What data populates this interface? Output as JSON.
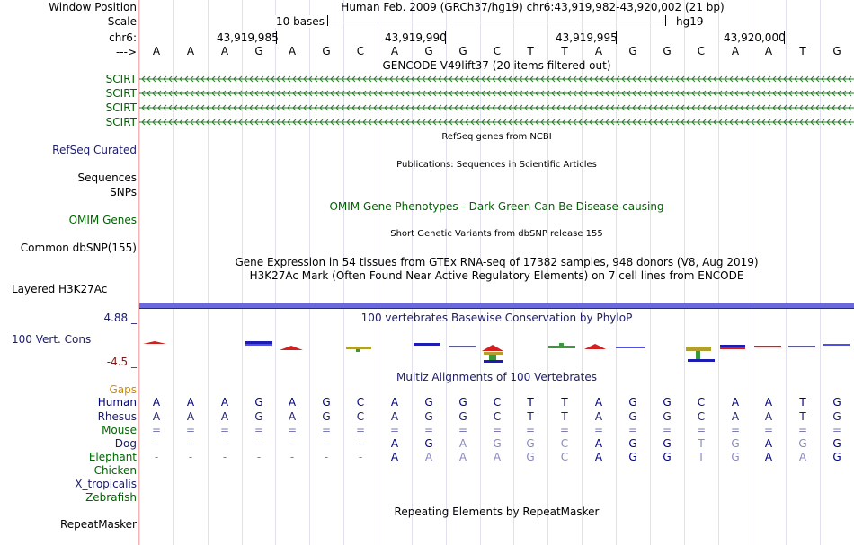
{
  "header": {
    "window_position_label": "Window Position",
    "window_position_value": "Human Feb. 2009 (GRCh37/hg19)   chr6:43,919,982-43,920,002 (21 bp)",
    "scale_label": "Scale",
    "scale_value": "10 bases",
    "scale_assembly": "hg19",
    "chrom_label": "chr6:",
    "strand_label": "--->",
    "positions": [
      "43,919,985",
      "43,919,990",
      "43,919,995",
      "43,920,000"
    ]
  },
  "sequence": [
    "A",
    "A",
    "A",
    "G",
    "A",
    "G",
    "C",
    "A",
    "G",
    "G",
    "C",
    "T",
    "T",
    "A",
    "G",
    "G",
    "C",
    "A",
    "A",
    "T",
    "G"
  ],
  "tracks": {
    "gencode_title": "GENCODE V49lift37 (20 items filtered out)",
    "gencode_items": [
      "SCIRT",
      "SCIRT",
      "SCIRT",
      "SCIRT"
    ],
    "refseq_title": "RefSeq genes from NCBI",
    "refseq_label": "RefSeq Curated",
    "publications_title": "Publications: Sequences in Scientific Articles",
    "sequences_label": "Sequences",
    "snps_label": "SNPs",
    "omim_title": "OMIM Gene Phenotypes - Dark Green Can Be Disease-causing",
    "omim_label": "OMIM Genes",
    "dbsnp_title": "Short Genetic Variants from dbSNP release 155",
    "dbsnp_label": "Common dbSNP(155)",
    "gtex_title": "Gene Expression in 54 tissues from GTEx RNA-seq of 17382 samples, 948 donors (V8, Aug 2019)",
    "h3k27_title": "H3K27Ac Mark (Often Found Near Active Regulatory Elements) on 7 cell lines from ENCODE",
    "h3k27_label": "Layered H3K27Ac",
    "phylop_title": "100 vertebrates Basewise Conservation by PhyloP",
    "phylop_label": "100 Vert. Cons",
    "phylop_max": "4.88 _",
    "phylop_min": "-4.5 _",
    "multiz_title": "Multiz Alignments of 100 Vertebrates",
    "gaps_label": "Gaps",
    "repeat_title": "Repeating Elements by RepeatMasker",
    "repeat_label": "RepeatMasker"
  },
  "alignments": [
    {
      "species": "Human",
      "bases": [
        "A",
        "A",
        "A",
        "G",
        "A",
        "G",
        "C",
        "A",
        "G",
        "G",
        "C",
        "T",
        "T",
        "A",
        "G",
        "G",
        "C",
        "A",
        "A",
        "T",
        "G"
      ]
    },
    {
      "species": "Rhesus",
      "bases": [
        "A",
        "A",
        "A",
        "G",
        "A",
        "G",
        "C",
        "A",
        "G",
        "G",
        "C",
        "T",
        "T",
        "A",
        "G",
        "G",
        "C",
        "A",
        "A",
        "T",
        "G"
      ]
    },
    {
      "species": "Mouse",
      "bases": [
        "=",
        "=",
        "=",
        "=",
        "=",
        "=",
        "=",
        "=",
        "=",
        "=",
        "=",
        "=",
        "=",
        "=",
        "=",
        "=",
        "=",
        "=",
        "=",
        "=",
        "="
      ]
    },
    {
      "species": "Dog",
      "bases": [
        "-",
        "-",
        "-",
        "-",
        "-",
        "-",
        "-",
        "A",
        "G",
        "A",
        "G",
        "G",
        "C",
        "A",
        "G",
        "G",
        "T",
        "G",
        "A",
        "G",
        "G"
      ]
    },
    {
      "species": "Elephant",
      "bases": [
        "-",
        "-",
        "-",
        "-",
        "-",
        "-",
        "-",
        "A",
        "A",
        "A",
        "A",
        "G",
        "C",
        "A",
        "G",
        "G",
        "T",
        "G",
        "A",
        "A",
        "G"
      ]
    },
    {
      "species": "Chicken",
      "bases": []
    },
    {
      "species": "X_tropicalis",
      "bases": []
    },
    {
      "species": "Zebrafish",
      "bases": []
    }
  ],
  "colors": {
    "gencode": "#2a7a2a",
    "species": "#006400",
    "human": "#000080",
    "phylop_bar": "#5a5ad0",
    "gaps": "#d08a00"
  }
}
